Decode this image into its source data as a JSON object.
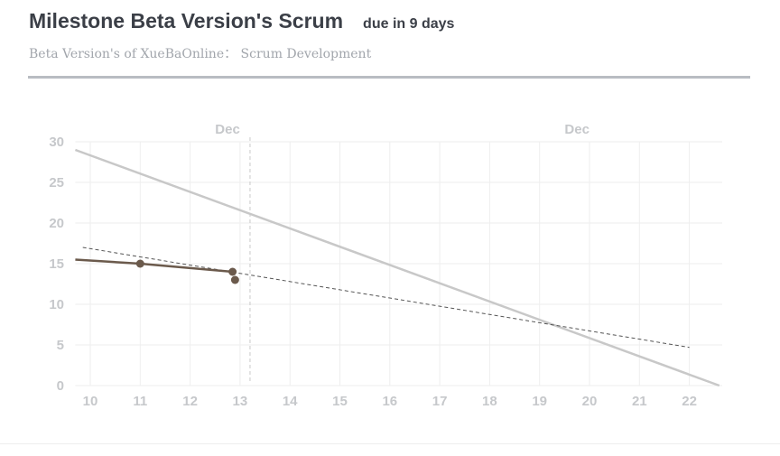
{
  "header": {
    "title": "Milestone Beta Version's Scrum",
    "due": "due in 9 days",
    "subtitle": "Beta Version's of XueBaOnline： Scrum Development"
  },
  "colors": {
    "ideal_line": "#c8c8c8",
    "actual_line": "#6b5a4c",
    "trend_line": "#555555",
    "today_line": "#c8c8c8",
    "grid": "#eeeeee"
  },
  "chart_data": {
    "type": "line",
    "title": "",
    "xlabel": "",
    "ylabel": "",
    "xlim": [
      9.7,
      22.7
    ],
    "ylim": [
      0,
      30
    ],
    "x_ticks": [
      10,
      11,
      12,
      13,
      14,
      15,
      16,
      17,
      18,
      19,
      20,
      21,
      22
    ],
    "y_ticks": [
      0,
      5,
      10,
      15,
      20,
      25,
      30
    ],
    "month_labels": [
      {
        "label": "Dec",
        "x": 12.75
      },
      {
        "label": "Dec",
        "x": 19.75
      }
    ],
    "today_x": 13.2,
    "grid": true,
    "series": [
      {
        "style": "ideal",
        "points": [
          [
            9.7,
            29
          ],
          [
            22.6,
            0
          ]
        ]
      },
      {
        "style": "trend",
        "points": [
          [
            9.85,
            17
          ],
          [
            22,
            4.7
          ]
        ]
      },
      {
        "style": "actual",
        "points": [
          [
            9.7,
            15.5
          ],
          [
            11,
            15
          ],
          [
            12.85,
            14
          ],
          [
            12.9,
            13
          ]
        ],
        "line_points": [
          [
            9.7,
            15.5
          ],
          [
            11,
            15
          ],
          [
            12.85,
            14
          ]
        ],
        "markers": [
          [
            11,
            15
          ],
          [
            12.85,
            14
          ],
          [
            12.9,
            13
          ]
        ]
      }
    ]
  }
}
